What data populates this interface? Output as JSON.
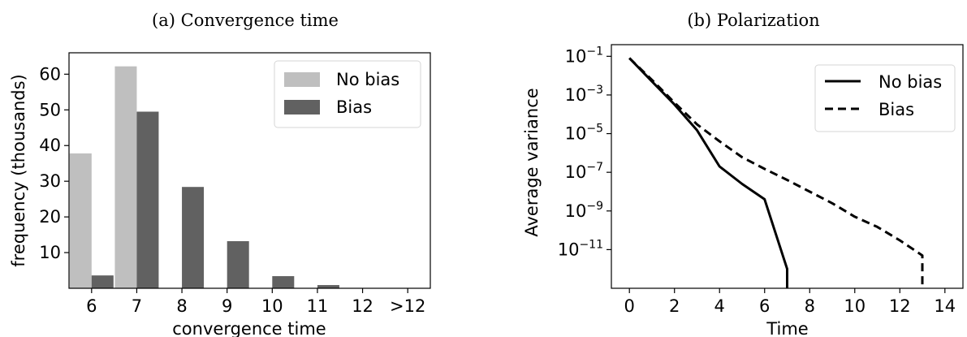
{
  "chart_data": [
    {
      "type": "bar",
      "title": "(a) Convergence time",
      "xlabel": "convergence time",
      "ylabel": "frequency (thousands)",
      "categories": [
        "6",
        "7",
        "8",
        "9",
        "10",
        "11",
        "12",
        ">12"
      ],
      "ylim": [
        0,
        66
      ],
      "yticks": [
        10,
        20,
        30,
        40,
        50,
        60
      ],
      "ytick_labels": [
        "10",
        "20",
        "30",
        "40",
        "50",
        "60"
      ],
      "legend_position": "top-right",
      "series": [
        {
          "name": "No bias",
          "color": "#bfbfbf",
          "values": [
            37.8,
            62.2,
            0,
            0,
            0,
            0,
            0,
            0
          ]
        },
        {
          "name": "Bias",
          "color": "#616161",
          "values": [
            3.6,
            49.5,
            28.4,
            13.2,
            3.4,
            0.9,
            0,
            0
          ]
        }
      ]
    },
    {
      "type": "line",
      "title": "(b) Polarization",
      "xlabel": "Time",
      "ylabel": "Average variance",
      "y_scale": "log",
      "xlim": [
        -0.8,
        14.8
      ],
      "ylim": [
        1e-13,
        0.4
      ],
      "xticks": [
        0,
        2,
        4,
        6,
        8,
        10,
        12,
        14
      ],
      "xtick_labels": [
        "0",
        "2",
        "4",
        "6",
        "8",
        "10",
        "12",
        "14"
      ],
      "yticks": [
        0.1,
        0.001,
        1e-05,
        1e-07,
        1e-09,
        1e-11
      ],
      "ytick_labels": [
        {
          "base": "10",
          "exp": "−1"
        },
        {
          "base": "10",
          "exp": "−3"
        },
        {
          "base": "10",
          "exp": "−5"
        },
        {
          "base": "10",
          "exp": "−7"
        },
        {
          "base": "10",
          "exp": "−9"
        },
        {
          "base": "10",
          "exp": "−11"
        }
      ],
      "legend_position": "top-right",
      "series": [
        {
          "name": "No bias",
          "color": "#000000",
          "dash": "solid",
          "x": [
            0,
            1,
            2,
            3,
            4,
            5,
            6,
            7,
            7
          ],
          "y": [
            0.08,
            0.005,
            0.00032,
            1.5e-05,
            2e-07,
            2.5e-08,
            4e-09,
            1e-12,
            1e-13
          ]
        },
        {
          "name": "Bias",
          "color": "#000000",
          "dash": "dashed",
          "x": [
            0,
            1,
            2,
            3,
            4,
            5,
            6,
            7,
            8,
            9,
            10,
            11,
            12,
            13,
            13
          ],
          "y": [
            0.08,
            0.006,
            0.0004,
            3e-05,
            4e-06,
            6e-07,
            1.5e-07,
            4e-08,
            1e-08,
            2.5e-09,
            5e-10,
            1.5e-10,
            3e-11,
            5e-12,
            1e-13
          ]
        }
      ]
    }
  ]
}
